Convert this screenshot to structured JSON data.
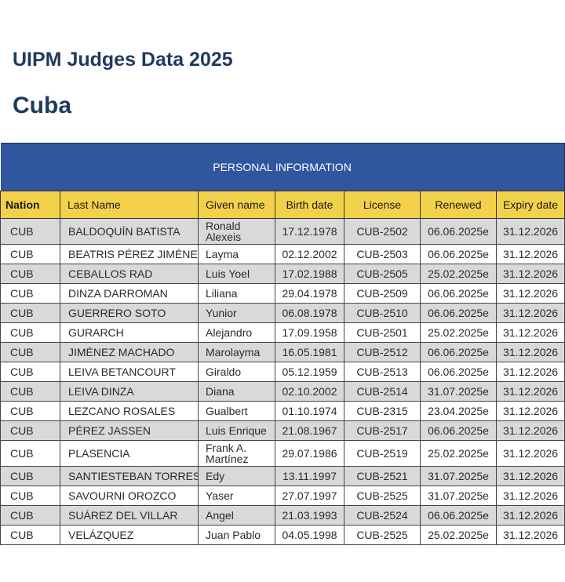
{
  "header": {
    "title": "UIPM Judges Data 2025",
    "country": "Cuba"
  },
  "table": {
    "section_label": "PERSONAL INFORMATION",
    "columns": [
      "Nation",
      "Last Name",
      "Given name",
      "Birth date",
      "License",
      "Renewed",
      "Expiry date"
    ],
    "rows": [
      {
        "nation": "CUB",
        "last": "BALDOQUÍN BATISTA",
        "given": "Ronald Alexeis",
        "birth": "17.12.1978",
        "license": "CUB-2502",
        "renewed": "06.06.2025e",
        "expiry": "31.12.2026"
      },
      {
        "nation": "CUB",
        "last": "BEATRIS PÉREZ JIMÉNEZ",
        "given": "Layma",
        "birth": "02.12.2002",
        "license": "CUB-2503",
        "renewed": "06.06.2025e",
        "expiry": "31.12.2026"
      },
      {
        "nation": "CUB",
        "last": "CEBALLOS RAD",
        "given": "Luis Yoel",
        "birth": "17.02.1988",
        "license": "CUB-2505",
        "renewed": "25.02.2025e",
        "expiry": "31.12.2026"
      },
      {
        "nation": "CUB",
        "last": "DINZA DARROMAN",
        "given": "Liliana",
        "birth": "29.04.1978",
        "license": "CUB-2509",
        "renewed": "06.06.2025e",
        "expiry": "31.12.2026"
      },
      {
        "nation": "CUB",
        "last": "GUERRERO SOTO",
        "given": "Yunior",
        "birth": "06.08.1978",
        "license": "CUB-2510",
        "renewed": "06.06.2025e",
        "expiry": "31.12.2026"
      },
      {
        "nation": "CUB",
        "last": "GURARCH",
        "given": "Alejandro",
        "birth": "17.09.1958",
        "license": "CUB-2501",
        "renewed": "25.02.2025e",
        "expiry": "31.12.2026"
      },
      {
        "nation": "CUB",
        "last": "JIMÉNEZ MACHADO",
        "given": "Marolayma",
        "birth": "16.05.1981",
        "license": "CUB-2512",
        "renewed": "06.06.2025e",
        "expiry": "31.12.2026"
      },
      {
        "nation": "CUB",
        "last": "LEIVA BETANCOURT",
        "given": "Giraldo",
        "birth": "05.12.1959",
        "license": "CUB-2513",
        "renewed": "06.06.2025e",
        "expiry": "31.12.2026"
      },
      {
        "nation": "CUB",
        "last": "LEIVA DINZA",
        "given": "Diana",
        "birth": "02.10.2002",
        "license": "CUB-2514",
        "renewed": "31.07.2025e",
        "expiry": "31.12.2026"
      },
      {
        "nation": "CUB",
        "last": "LEZCANO ROSALES",
        "given": "Gualbert",
        "birth": "01.10.1974",
        "license": "CUB-2315",
        "renewed": "23.04.2025e",
        "expiry": "31.12.2026"
      },
      {
        "nation": "CUB",
        "last": "PÉREZ JASSEN",
        "given": "Luis Enrique",
        "birth": "21.08.1967",
        "license": "CUB-2517",
        "renewed": "06.06.2025e",
        "expiry": "31.12.2026"
      },
      {
        "nation": "CUB",
        "last": "PLASENCIA",
        "given": "Frank A. Martínez",
        "birth": "29.07.1986",
        "license": "CUB-2519",
        "renewed": "25.02.2025e",
        "expiry": "31.12.2026"
      },
      {
        "nation": "CUB",
        "last": "SANTIESTEBAN TORRES",
        "given": "Edy",
        "birth": "13.11.1997",
        "license": "CUB-2521",
        "renewed": "31.07.2025e",
        "expiry": "31.12.2026"
      },
      {
        "nation": "CUB",
        "last": "SAVOURNI OROZCO",
        "given": "Yaser",
        "birth": "27.07.1997",
        "license": "CUB-2525",
        "renewed": "31.07.2025e",
        "expiry": "31.12.2026"
      },
      {
        "nation": "CUB",
        "last": "SUÁREZ DEL VILLAR",
        "given": "Angel",
        "birth": "21.03.1993",
        "license": "CUB-2524",
        "renewed": "06.06.2025e",
        "expiry": "31.12.2026"
      },
      {
        "nation": "CUB",
        "last": "VELÁZQUEZ",
        "given": "Juan Pablo",
        "birth": "04.05.1998",
        "license": "CUB-2525",
        "renewed": "25.02.2025e",
        "expiry": "31.12.2026"
      }
    ]
  },
  "colors": {
    "title": "#1f3a5f",
    "section_header_bg": "#3156a0",
    "column_header_bg": "#f3d14a",
    "row_alt_bg": "#d9d9d9"
  }
}
